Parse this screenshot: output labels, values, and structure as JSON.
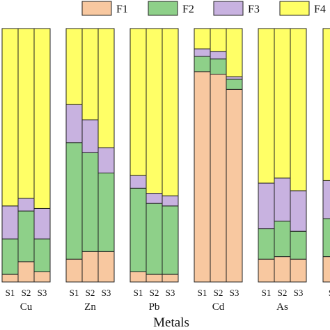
{
  "colors": {
    "F1": "#f8c8a0",
    "F2": "#8ed089",
    "F3": "#c8b2e0",
    "F4": "#ffff66",
    "stroke": "#222222"
  },
  "chart_data": {
    "type": "bar",
    "stacked": true,
    "percent": true,
    "title": "",
    "xlabel": "Metals",
    "ylabel": "",
    "ylim": [
      0,
      100
    ],
    "grid": false,
    "legend": {
      "placement": "top",
      "entries": [
        "F1",
        "F2",
        "F3",
        "F4"
      ]
    },
    "series_order": [
      "F1",
      "F2",
      "F3",
      "F4"
    ],
    "groups": [
      {
        "name": "Cu",
        "samples": [
          {
            "label": "S1",
            "F1": 3,
            "F2": 14,
            "F3": 13,
            "F4": 70
          },
          {
            "label": "S2",
            "F1": 8,
            "F2": 20,
            "F3": 5,
            "F4": 67
          },
          {
            "label": "S3",
            "F1": 4,
            "F2": 13,
            "F3": 12,
            "F4": 71
          }
        ]
      },
      {
        "name": "Zn",
        "samples": [
          {
            "label": "S1",
            "F1": 9,
            "F2": 46,
            "F3": 15,
            "F4": 30
          },
          {
            "label": "S2",
            "F1": 12,
            "F2": 39,
            "F3": 13,
            "F4": 36
          },
          {
            "label": "S3",
            "F1": 12,
            "F2": 31,
            "F3": 10,
            "F4": 47
          }
        ]
      },
      {
        "name": "Pb",
        "samples": [
          {
            "label": "S1",
            "F1": 4,
            "F2": 33,
            "F3": 5,
            "F4": 58
          },
          {
            "label": "S2",
            "F1": 3,
            "F2": 28,
            "F3": 4,
            "F4": 65
          },
          {
            "label": "S3",
            "F1": 3,
            "F2": 27,
            "F3": 4,
            "F4": 66
          }
        ]
      },
      {
        "name": "Cd",
        "samples": [
          {
            "label": "S1",
            "F1": 83,
            "F2": 6,
            "F3": 3,
            "F4": 8
          },
          {
            "label": "S2",
            "F1": 82,
            "F2": 6,
            "F3": 3,
            "F4": 9
          },
          {
            "label": "S3",
            "F1": 76,
            "F2": 4,
            "F3": 1,
            "F4": 19
          }
        ]
      },
      {
        "name": "As",
        "samples": [
          {
            "label": "S1",
            "F1": 9,
            "F2": 12,
            "F3": 18,
            "F4": 61
          },
          {
            "label": "S2",
            "F1": 10,
            "F2": 14,
            "F3": 17,
            "F4": 59
          },
          {
            "label": "S3",
            "F1": 9,
            "F2": 11,
            "F3": 16,
            "F4": 64
          }
        ]
      },
      {
        "name": "",
        "samples": [
          {
            "label": "S",
            "F1": 10,
            "F2": 15,
            "F3": 15,
            "F4": 60
          }
        ]
      }
    ]
  }
}
